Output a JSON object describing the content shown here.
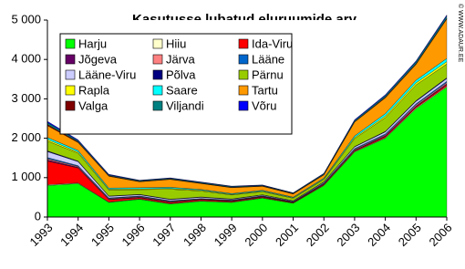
{
  "chart_data": {
    "type": "stacked-area",
    "title": "Kasutusse lubatud eluruumide arv",
    "watermark": "© WWW.ADAUR.EE",
    "categories": [
      "1993",
      "1994",
      "1995",
      "1996",
      "1997",
      "1998",
      "1999",
      "2000",
      "2001",
      "2002",
      "2003",
      "2004",
      "2005",
      "2006"
    ],
    "ylim": [
      0,
      5000
    ],
    "yticks": [
      0,
      {
        "value": 1000,
        "label": "1 000"
      },
      {
        "value": 2000,
        "label": "2 000"
      },
      {
        "value": 3000,
        "label": "3 000"
      },
      {
        "value": 4000,
        "label": "4 000"
      },
      {
        "value": 5000,
        "label": "5 000"
      }
    ],
    "grid": false,
    "legend": "upper-left",
    "series": [
      {
        "name": "Harju",
        "color": "#00ff00",
        "values": [
          800,
          850,
          370,
          450,
          330,
          400,
          370,
          480,
          350,
          800,
          1650,
          2000,
          2750,
          3300
        ]
      },
      {
        "name": "Hiiu",
        "color": "#ffffcc",
        "values": [
          20,
          15,
          10,
          10,
          10,
          10,
          10,
          10,
          5,
          10,
          15,
          15,
          20,
          20
        ]
      },
      {
        "name": "Ida-Viru",
        "color": "#ff0000",
        "values": [
          600,
          380,
          60,
          30,
          30,
          30,
          20,
          20,
          15,
          20,
          20,
          30,
          30,
          40
        ]
      },
      {
        "name": "Jõgeva",
        "color": "#660066",
        "values": [
          30,
          20,
          15,
          15,
          15,
          10,
          10,
          10,
          5,
          10,
          15,
          20,
          20,
          25
        ]
      },
      {
        "name": "Järva",
        "color": "#ff8080",
        "values": [
          30,
          20,
          15,
          15,
          15,
          10,
          10,
          10,
          10,
          10,
          20,
          20,
          30,
          30
        ]
      },
      {
        "name": "Lääne",
        "color": "#0066cc",
        "values": [
          30,
          20,
          15,
          15,
          15,
          10,
          10,
          10,
          10,
          15,
          20,
          25,
          25,
          30
        ]
      },
      {
        "name": "Lääne-Viru",
        "color": "#ccccff",
        "values": [
          150,
          100,
          40,
          30,
          30,
          30,
          20,
          20,
          15,
          20,
          40,
          50,
          60,
          70
        ]
      },
      {
        "name": "Põlva",
        "color": "#000080",
        "values": [
          20,
          15,
          10,
          10,
          10,
          10,
          10,
          5,
          5,
          10,
          10,
          15,
          20,
          20
        ]
      },
      {
        "name": "Pärnu",
        "color": "#99cc00",
        "values": [
          250,
          200,
          150,
          120,
          250,
          150,
          100,
          80,
          60,
          60,
          200,
          350,
          400,
          350
        ]
      },
      {
        "name": "Rapla",
        "color": "#ffff00",
        "values": [
          40,
          30,
          20,
          20,
          20,
          20,
          15,
          15,
          15,
          15,
          30,
          40,
          50,
          60
        ]
      },
      {
        "name": "Saare",
        "color": "#00ffff",
        "values": [
          50,
          40,
          30,
          30,
          30,
          20,
          20,
          20,
          15,
          20,
          40,
          60,
          70,
          80
        ]
      },
      {
        "name": "Tartu",
        "color": "#ff9900",
        "values": [
          300,
          200,
          300,
          150,
          200,
          150,
          150,
          100,
          80,
          80,
          350,
          400,
          400,
          1000
        ]
      },
      {
        "name": "Valga",
        "color": "#800000",
        "values": [
          30,
          20,
          15,
          10,
          10,
          10,
          10,
          10,
          10,
          10,
          10,
          20,
          20,
          20
        ]
      },
      {
        "name": "Viljandi",
        "color": "#008080",
        "values": [
          50,
          30,
          20,
          20,
          20,
          20,
          20,
          15,
          15,
          20,
          30,
          40,
          50,
          60
        ]
      },
      {
        "name": "Võru",
        "color": "#0000ff",
        "values": [
          30,
          20,
          15,
          10,
          10,
          10,
          10,
          10,
          5,
          10,
          20,
          20,
          20,
          25
        ]
      }
    ]
  }
}
